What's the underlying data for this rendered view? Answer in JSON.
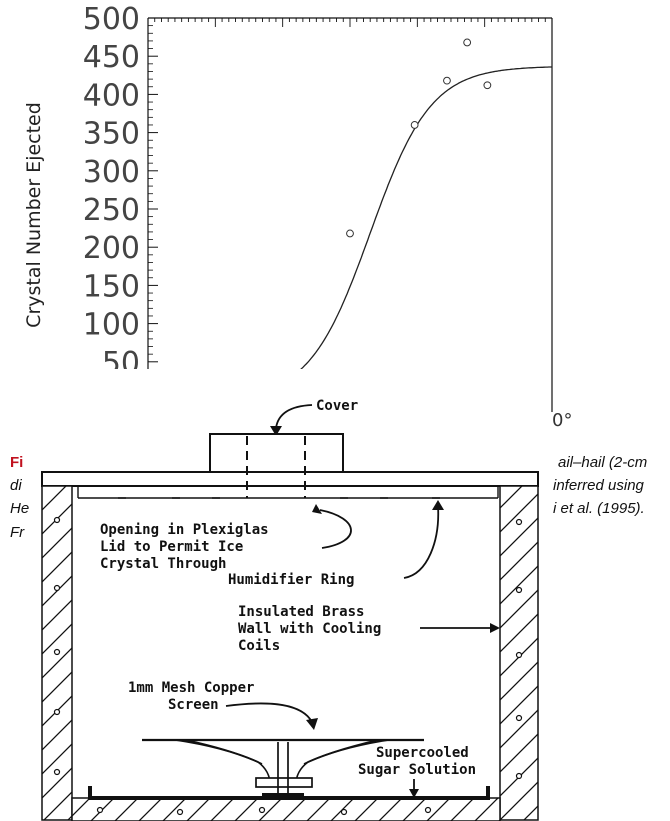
{
  "chart_data": {
    "type": "scatter",
    "ylabel": "Crystal Number Ejected",
    "y_ticks": [
      "500",
      "450",
      "400",
      "350",
      "300",
      "250",
      "200",
      "150",
      "100",
      "50"
    ],
    "ylim": [
      0,
      500
    ],
    "x_tick_fragment": "0°",
    "points": [
      {
        "x": 0.5,
        "y": 218
      },
      {
        "x": 0.66,
        "y": 360
      },
      {
        "x": 0.74,
        "y": 418
      },
      {
        "x": 0.79,
        "y": 468
      },
      {
        "x": 0.84,
        "y": 412
      }
    ],
    "curve_plateau": 437
  },
  "caption": {
    "red_prefix": "Fi",
    "left_fragments": [
      "di",
      "He",
      "Fr"
    ],
    "right_fragments": [
      "ail–hail (2-cm",
      "inferred using",
      "i et al. (1995)."
    ]
  },
  "diagram": {
    "cover": "Cover",
    "opening": [
      "Opening in Plexiglas",
      "Lid to Permit Ice",
      "Crystal Through"
    ],
    "humidifier": "Humidifier Ring",
    "wall": [
      "Insulated Brass",
      "Wall with Cooling",
      "Coils"
    ],
    "mesh": [
      "1mm Mesh Copper",
      "Screen"
    ],
    "solution": [
      "Supercooled",
      "Sugar Solution"
    ]
  }
}
